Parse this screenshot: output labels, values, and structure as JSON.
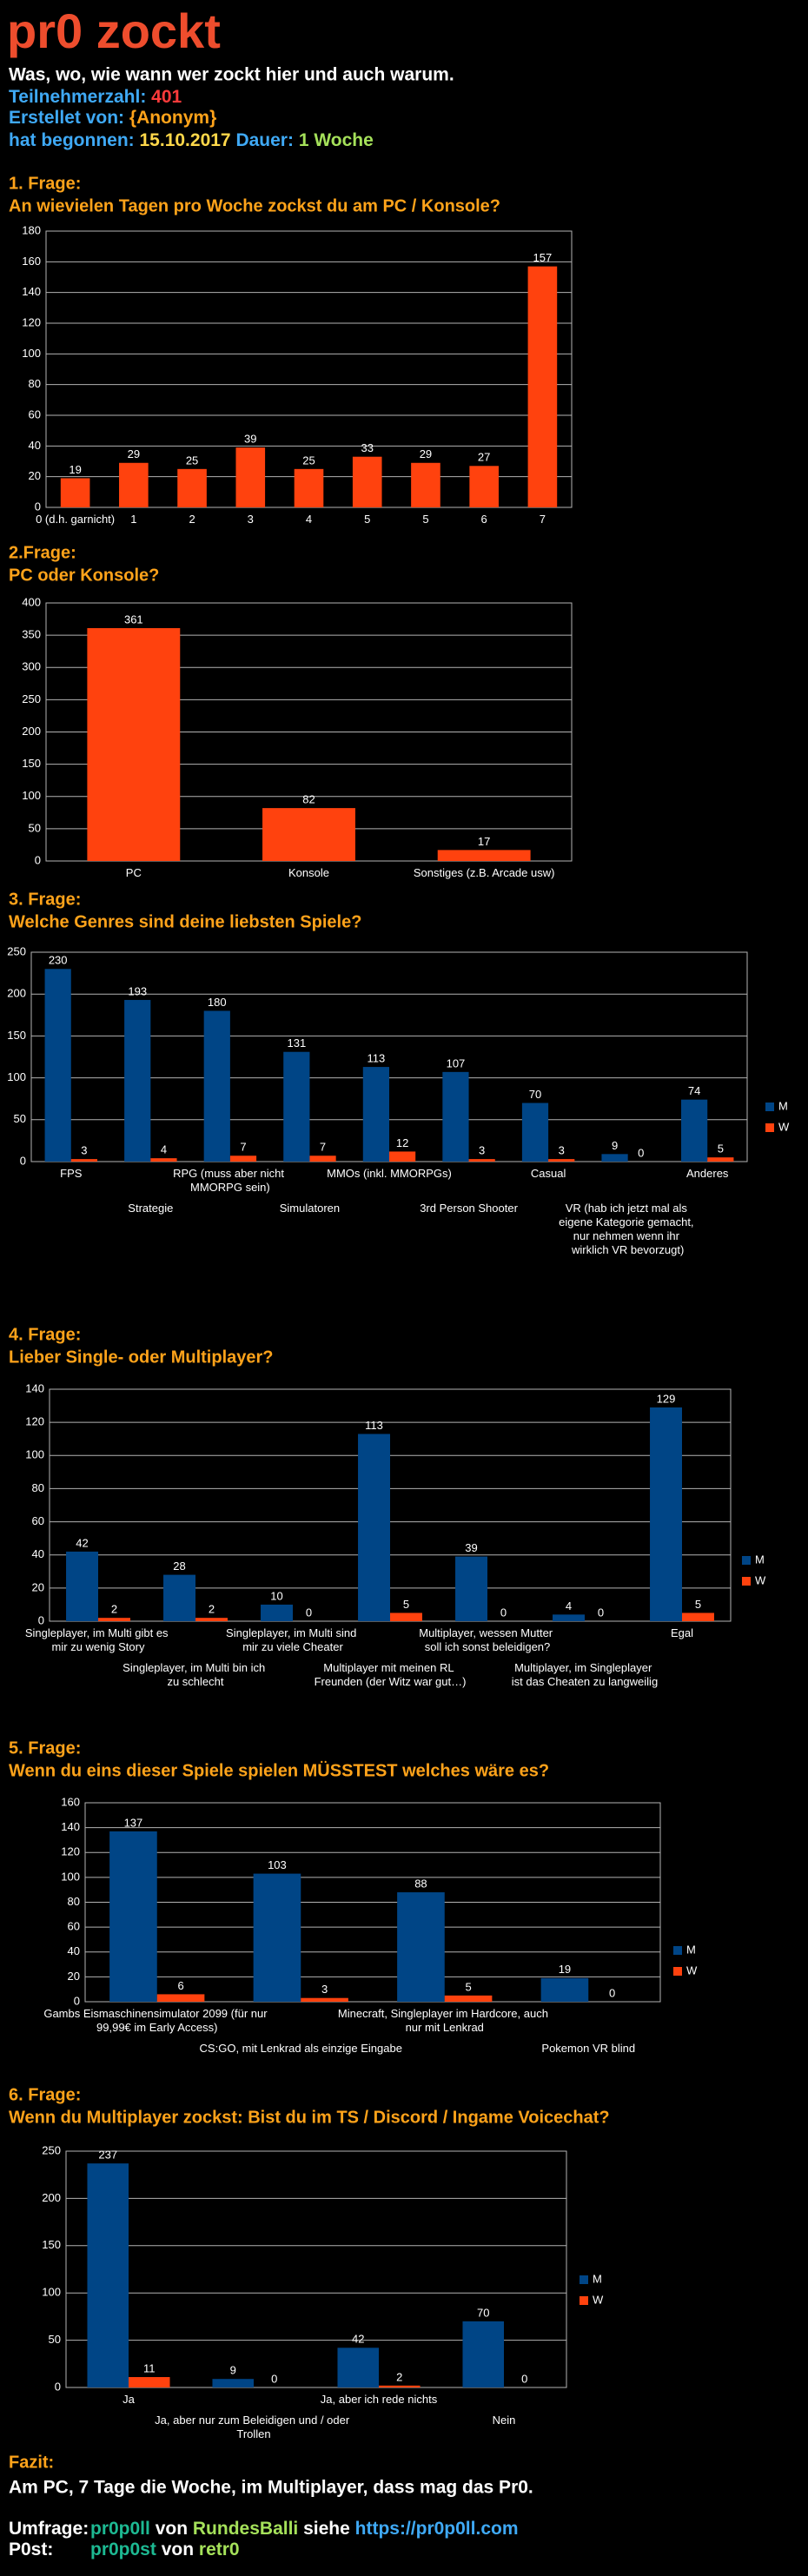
{
  "header": {
    "title": "pr0 zockt",
    "subtitle": "Was, wo, wie wann wer zockt hier und auch warum.",
    "participants_label": "Teilnehmerzahl:",
    "participants": 401,
    "author_label": "Erstellet von:",
    "author": "{Anonym}",
    "start_label": "hat begonnen:",
    "start": "15.10.2017",
    "duration_label": "Dauer:",
    "duration": "1 Woche"
  },
  "chart_data": [
    {
      "type": "bar",
      "question": "1. Frage:",
      "title": "An wievielen Tagen pro Woche zockst du am PC / Konsole?",
      "categories": [
        "0 (d.h. garnicht)",
        "1",
        "2",
        "3",
        "4",
        "5",
        "5",
        "6",
        "7"
      ],
      "values": [
        19,
        29,
        25,
        39,
        25,
        33,
        29,
        27,
        157
      ],
      "color": "#ff420e",
      "ylim": [
        0,
        180
      ],
      "yticks": [
        0,
        20,
        40,
        60,
        80,
        100,
        120,
        140,
        160,
        180
      ],
      "grid": true
    },
    {
      "type": "bar",
      "question": "2.Frage:",
      "title": "PC oder Konsole?",
      "categories": [
        "PC",
        "Konsole",
        "Sonstiges (z.B. Arcade usw)"
      ],
      "values": [
        361,
        82,
        17
      ],
      "color": "#ff420e",
      "ylim": [
        0,
        400
      ],
      "yticks": [
        0,
        50,
        100,
        150,
        200,
        250,
        300,
        350,
        400
      ],
      "grid": true
    },
    {
      "type": "bar",
      "question": "3. Frage:",
      "title": "Welche Genres sind deine liebsten Spiele?",
      "categories": [
        "FPS",
        "Strategie",
        "RPG (muss aber nicht MMORPG sein)",
        "Simulatoren",
        "MMOs (inkl. MMORPGs)",
        "3rd Person Shooter",
        "Casual",
        "VR (hab ich jetzt mal als eigene Kategorie gemacht, nur nehmen wenn ihr wirklich VR bevorzugt)",
        "Anderes"
      ],
      "series": [
        {
          "name": "M",
          "color": "#004586",
          "values": [
            230,
            193,
            180,
            131,
            113,
            107,
            70,
            9,
            74
          ]
        },
        {
          "name": "W",
          "color": "#ff420e",
          "values": [
            3,
            4,
            7,
            7,
            12,
            3,
            3,
            0,
            5
          ]
        }
      ],
      "ylim": [
        0,
        250
      ],
      "yticks": [
        0,
        50,
        100,
        150,
        200,
        250
      ],
      "grid": true,
      "legend": "right"
    },
    {
      "type": "bar",
      "question": "4. Frage:",
      "title": "Lieber Single- oder Multiplayer?",
      "categories": [
        "Singleplayer, im Multi gibt es mir zu wenig Story",
        "Singleplayer, im Multi bin ich zu schlecht",
        "Singleplayer, im Multi sind mir zu viele Cheater",
        "Multiplayer mit meinen RL Freunden (der Witz war gut…)",
        "Multiplayer, wessen Mutter soll ich sonst beleidigen?",
        "Multiplayer, im Singleplayer ist das Cheaten zu langweilig",
        "Egal"
      ],
      "series": [
        {
          "name": "M",
          "color": "#004586",
          "values": [
            42,
            28,
            10,
            113,
            39,
            4,
            129
          ]
        },
        {
          "name": "W",
          "color": "#ff420e",
          "values": [
            2,
            2,
            0,
            5,
            0,
            0,
            5
          ]
        }
      ],
      "ylim": [
        0,
        140
      ],
      "yticks": [
        0,
        20,
        40,
        60,
        80,
        100,
        120,
        140
      ],
      "grid": true,
      "legend": "right"
    },
    {
      "type": "bar",
      "question": "5. Frage:",
      "title": "Wenn du eins dieser Spiele spielen MÜSSTEST welches wäre es?",
      "categories": [
        "Gambs Eismaschinensimulator 2099 (für nur 99,99€ im Early Access)",
        "CS:GO, mit Lenkrad als einzige Eingabe",
        "Minecraft, Singleplayer im Hardcore, auch nur mit Lenkrad",
        "Pokemon VR blind"
      ],
      "series": [
        {
          "name": "M",
          "color": "#004586",
          "values": [
            137,
            103,
            88,
            19
          ]
        },
        {
          "name": "W",
          "color": "#ff420e",
          "values": [
            6,
            3,
            5,
            0
          ]
        }
      ],
      "ylim": [
        0,
        160
      ],
      "yticks": [
        0,
        20,
        40,
        60,
        80,
        100,
        120,
        140,
        160
      ],
      "grid": true,
      "legend": "right"
    },
    {
      "type": "bar",
      "question": "6. Frage:",
      "title": "Wenn du Multiplayer zockst: Bist du im TS / Discord / Ingame Voicechat?",
      "categories": [
        "Ja",
        "Ja, aber nur zum Beleidigen und / oder Trollen",
        "Ja, aber ich rede nichts",
        "Nein"
      ],
      "series": [
        {
          "name": "M",
          "color": "#004586",
          "values": [
            237,
            9,
            42,
            70
          ]
        },
        {
          "name": "W",
          "color": "#ff420e",
          "values": [
            11,
            0,
            2,
            0
          ]
        }
      ],
      "ylim": [
        0,
        250
      ],
      "yticks": [
        0,
        50,
        100,
        150,
        200,
        250
      ],
      "grid": true,
      "legend": "right"
    }
  ],
  "footer": {
    "summary_label": "Fazit:",
    "summary": "Am PC, 7 Tage die Woche, im Multiplayer, dass mag das Pr0.",
    "poll_label": "Umfrage:",
    "poll_name": "pr0p0ll",
    "poll_by": "von",
    "poll_author": "RundesBalli",
    "see": "siehe",
    "link": "https://pr0p0ll.com",
    "post_label": "P0st:",
    "post_name": "pr0p0st",
    "post_by": "von",
    "post_author": "retr0"
  }
}
